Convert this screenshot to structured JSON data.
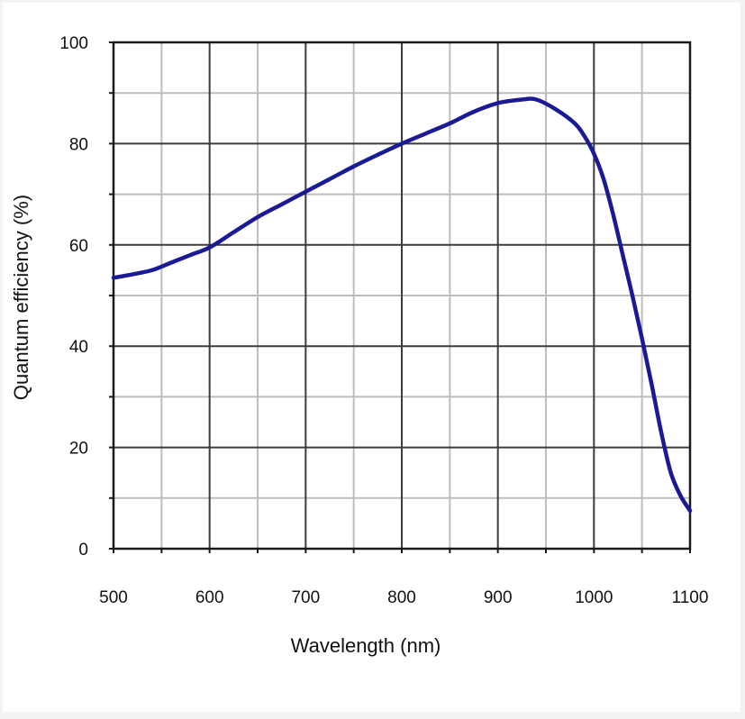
{
  "chart_data": {
    "type": "line",
    "title": "",
    "xlabel": "Wavelength (nm)",
    "ylabel": "Quantum efficiency (%)",
    "xlim": [
      500,
      1100
    ],
    "ylim": [
      0,
      100
    ],
    "x_ticks": [
      500,
      600,
      700,
      800,
      900,
      1000,
      1100
    ],
    "y_ticks": [
      0,
      20,
      40,
      60,
      80,
      100
    ],
    "x_minor_step": 50,
    "y_minor_step": 10,
    "grid": true,
    "legend": "none",
    "series_color": "#1a1a96",
    "series": [
      {
        "x": [
          500,
          520,
          540,
          560,
          580,
          600,
          625,
          650,
          675,
          700,
          725,
          750,
          775,
          800,
          825,
          850,
          875,
          900,
          925,
          940,
          960,
          980,
          990,
          1000,
          1010,
          1020,
          1030,
          1040,
          1050,
          1060,
          1070,
          1080,
          1090,
          1100
        ],
        "y": [
          53.5,
          54.2,
          55,
          56.5,
          58,
          59.5,
          62.5,
          65.5,
          68,
          70.5,
          73,
          75.5,
          77.8,
          80,
          82,
          84,
          86.3,
          88,
          88.7,
          88.7,
          86.8,
          84,
          81.5,
          78,
          73,
          66,
          58,
          50,
          41.5,
          32.5,
          23,
          15,
          10.5,
          7.5
        ]
      }
    ]
  }
}
